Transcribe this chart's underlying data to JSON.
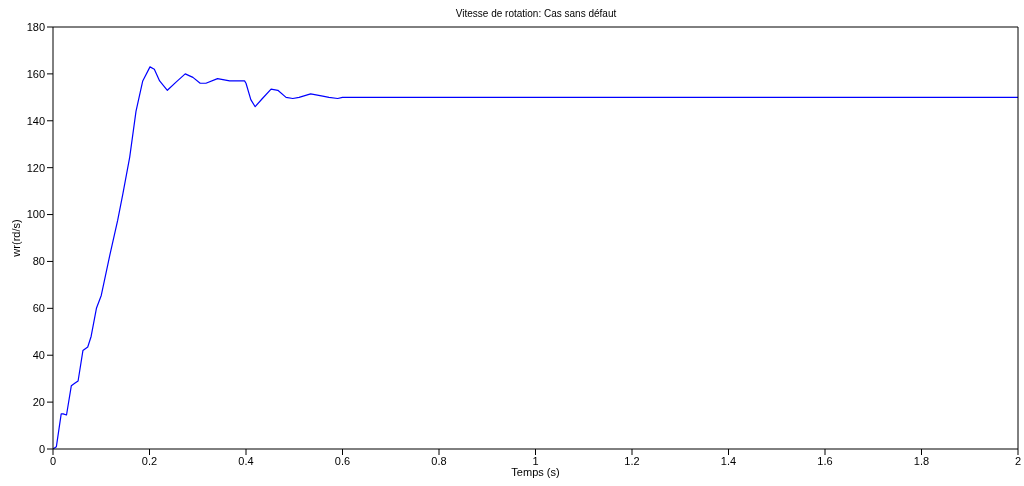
{
  "chart_data": {
    "type": "line",
    "title": "Vitesse de rotation: Cas sans défaut",
    "xlabel": "Temps (s)",
    "ylabel": "wr(rd/s)",
    "xlim": [
      0,
      2
    ],
    "xticks": [
      0,
      0.2,
      0.4,
      0.6,
      0.8,
      1,
      1.2,
      1.4,
      1.6,
      1.8,
      2
    ],
    "ylim": [
      0,
      180
    ],
    "yticks": [
      0,
      20,
      40,
      60,
      80,
      100,
      120,
      140,
      160,
      180
    ],
    "grid": false,
    "marker": "none",
    "line_style": "solid",
    "series": [
      {
        "color": "#0000ff",
        "x": [
          0,
          0.007,
          0.017,
          0.021,
          0.028,
          0.038,
          0.045,
          0.052,
          0.062,
          0.072,
          0.079,
          0.09,
          0.1,
          0.117,
          0.134,
          0.145,
          0.159,
          0.172,
          0.186,
          0.201,
          0.21,
          0.221,
          0.237,
          0.255,
          0.274,
          0.29,
          0.305,
          0.317,
          0.341,
          0.366,
          0.397,
          0.4,
          0.41,
          0.419,
          0.434,
          0.452,
          0.466,
          0.483,
          0.497,
          0.51,
          0.534,
          0.559,
          0.572,
          0.59,
          0.6,
          2
        ],
        "values": [
          0,
          1,
          15,
          15,
          14.5,
          27,
          28,
          29,
          42,
          43.5,
          48,
          60,
          65.5,
          82,
          97.5,
          109,
          124.5,
          144,
          157,
          163,
          162,
          157,
          153,
          156.5,
          160,
          158.5,
          156,
          156,
          158,
          157,
          157,
          156,
          149,
          146,
          149.5,
          153.5,
          153,
          150,
          149.5,
          150,
          151.5,
          150.5,
          150,
          149.5,
          150,
          150
        ]
      }
    ]
  }
}
